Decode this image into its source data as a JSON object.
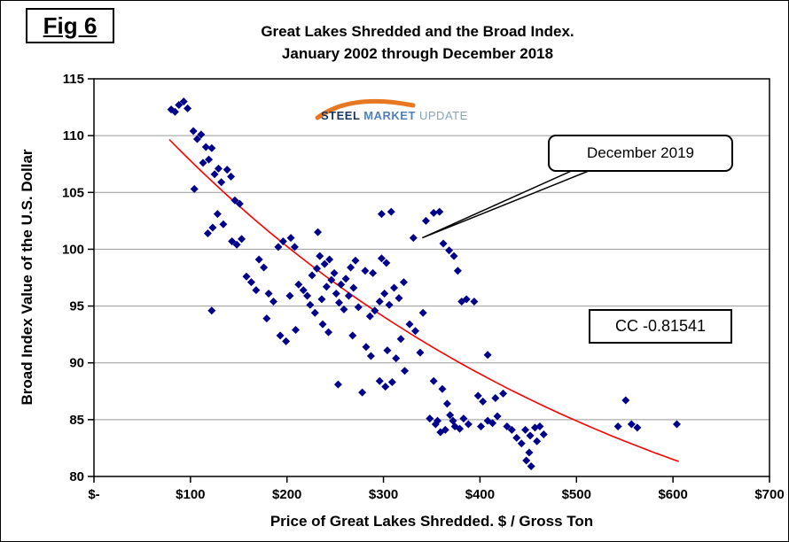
{
  "figure": {
    "label": "Fig 6"
  },
  "logo": {
    "steel": "STEEL ",
    "market": "MARKET ",
    "update": "UPDATE"
  },
  "annotations": {
    "callout": {
      "label": "December 2019",
      "target_x": 331,
      "target_y": 101
    },
    "cc_box": {
      "label": "CC -0.81541"
    }
  },
  "chart_data": {
    "type": "scatter",
    "title": "Great Lakes Shredded and the Broad Index.",
    "subtitle": "January 2002 through December 2018",
    "xlabel": "Price of Great Lakes Shredded. $ / Gross Ton",
    "ylabel": "Broad Index Value of the U.S. Dollar",
    "xlim": [
      0,
      700
    ],
    "ylim": [
      80,
      115
    ],
    "grid": "horizontal",
    "grid_color": "#999999",
    "x_ticks": [
      {
        "value": 0,
        "label": "$-"
      },
      {
        "value": 100,
        "label": "$100"
      },
      {
        "value": 200,
        "label": "$200"
      },
      {
        "value": 300,
        "label": "$300"
      },
      {
        "value": 400,
        "label": "$400"
      },
      {
        "value": 500,
        "label": "$500"
      },
      {
        "value": 600,
        "label": "$600"
      },
      {
        "value": 700,
        "label": "$700"
      }
    ],
    "y_ticks": [
      {
        "value": 80,
        "label": "80"
      },
      {
        "value": 85,
        "label": "85"
      },
      {
        "value": 90,
        "label": "90"
      },
      {
        "value": 95,
        "label": "95"
      },
      {
        "value": 100,
        "label": "100"
      },
      {
        "value": 105,
        "label": "105"
      },
      {
        "value": 110,
        "label": "110"
      },
      {
        "value": 115,
        "label": "115"
      }
    ],
    "marker": {
      "shape": "diamond",
      "color": "#00008B",
      "size": 9
    },
    "trend": {
      "type": "exponential",
      "color": "#FF0000",
      "c": 66.2,
      "a": 50.8,
      "tau": 500,
      "x_start": 78,
      "x_end": 612
    },
    "points": [
      [
        80,
        112.3
      ],
      [
        84,
        112.1
      ],
      [
        88,
        112.7
      ],
      [
        93,
        113.0
      ],
      [
        97,
        112.4
      ],
      [
        103,
        110.4
      ],
      [
        107,
        109.7
      ],
      [
        104,
        105.3
      ],
      [
        111,
        110.1
      ],
      [
        116,
        109.0
      ],
      [
        113,
        107.6
      ],
      [
        119,
        107.9
      ],
      [
        122,
        108.9
      ],
      [
        125,
        106.6
      ],
      [
        129,
        107.1
      ],
      [
        132,
        105.9
      ],
      [
        138,
        107.0
      ],
      [
        142,
        106.4
      ],
      [
        146,
        104.3
      ],
      [
        151,
        104.0
      ],
      [
        118,
        101.4
      ],
      [
        123,
        101.9
      ],
      [
        128,
        103.1
      ],
      [
        134,
        102.2
      ],
      [
        122,
        94.6
      ],
      [
        143,
        100.7
      ],
      [
        148,
        100.4
      ],
      [
        153,
        100.9
      ],
      [
        158,
        97.6
      ],
      [
        163,
        97.1
      ],
      [
        168,
        96.4
      ],
      [
        171,
        99.1
      ],
      [
        176,
        98.4
      ],
      [
        181,
        96.1
      ],
      [
        186,
        95.4
      ],
      [
        179,
        93.9
      ],
      [
        191,
        100.2
      ],
      [
        196,
        100.7
      ],
      [
        193,
        92.4
      ],
      [
        199,
        91.9
      ],
      [
        204,
        101.0
      ],
      [
        208,
        100.2
      ],
      [
        203,
        95.9
      ],
      [
        212,
        96.9
      ],
      [
        217,
        96.4
      ],
      [
        209,
        92.9
      ],
      [
        221,
        95.9
      ],
      [
        226,
        97.7
      ],
      [
        231,
        98.3
      ],
      [
        224,
        95.1
      ],
      [
        229,
        94.4
      ],
      [
        236,
        95.6
      ],
      [
        234,
        99.4
      ],
      [
        239,
        98.7
      ],
      [
        244,
        99.1
      ],
      [
        249,
        97.9
      ],
      [
        241,
        96.7
      ],
      [
        246,
        97.3
      ],
      [
        251,
        96.1
      ],
      [
        256,
        96.9
      ],
      [
        261,
        97.4
      ],
      [
        232,
        101.5
      ],
      [
        237,
        93.4
      ],
      [
        243,
        92.7
      ],
      [
        254,
        95.3
      ],
      [
        259,
        94.7
      ],
      [
        264,
        95.9
      ],
      [
        269,
        96.6
      ],
      [
        274,
        94.9
      ],
      [
        266,
        98.4
      ],
      [
        271,
        99.0
      ],
      [
        281,
        98.1
      ],
      [
        286,
        94.1
      ],
      [
        291,
        94.6
      ],
      [
        296,
        95.4
      ],
      [
        301,
        96.1
      ],
      [
        306,
        95.1
      ],
      [
        289,
        97.9
      ],
      [
        311,
        96.6
      ],
      [
        316,
        95.7
      ],
      [
        321,
        97.1
      ],
      [
        298,
        99.2
      ],
      [
        303,
        98.8
      ],
      [
        253,
        88.1
      ],
      [
        278,
        87.4
      ],
      [
        268,
        92.4
      ],
      [
        282,
        91.4
      ],
      [
        287,
        90.6
      ],
      [
        296,
        88.4
      ],
      [
        302,
        87.9
      ],
      [
        309,
        88.3
      ],
      [
        304,
        91.1
      ],
      [
        313,
        90.4
      ],
      [
        318,
        92.1
      ],
      [
        322,
        89.3
      ],
      [
        327,
        93.4
      ],
      [
        333,
        92.8
      ],
      [
        338,
        90.9
      ],
      [
        341,
        94.4
      ],
      [
        298,
        103.1
      ],
      [
        308,
        103.3
      ],
      [
        331,
        101.0
      ],
      [
        344,
        102.5
      ],
      [
        352,
        103.2
      ],
      [
        358,
        103.3
      ],
      [
        362,
        100.5
      ],
      [
        368,
        99.9
      ],
      [
        352,
        88.4
      ],
      [
        361,
        87.7
      ],
      [
        366,
        86.4
      ],
      [
        348,
        85.1
      ],
      [
        354,
        84.6
      ],
      [
        359,
        83.9
      ],
      [
        356,
        84.9
      ],
      [
        364,
        84.1
      ],
      [
        369,
        85.4
      ],
      [
        372,
        84.9
      ],
      [
        374,
        84.4
      ],
      [
        379,
        84.2
      ],
      [
        383,
        85.1
      ],
      [
        388,
        84.6
      ],
      [
        373,
        99.4
      ],
      [
        377,
        98.1
      ],
      [
        381,
        95.4
      ],
      [
        386,
        95.6
      ],
      [
        394,
        95.4
      ],
      [
        398,
        87.1
      ],
      [
        403,
        86.6
      ],
      [
        401,
        84.4
      ],
      [
        408,
        84.9
      ],
      [
        413,
        84.7
      ],
      [
        418,
        85.3
      ],
      [
        416,
        86.9
      ],
      [
        424,
        87.3
      ],
      [
        428,
        84.4
      ],
      [
        433,
        84.1
      ],
      [
        438,
        83.4
      ],
      [
        443,
        82.9
      ],
      [
        447,
        84.1
      ],
      [
        452,
        83.6
      ],
      [
        448,
        81.4
      ],
      [
        453,
        80.9
      ],
      [
        457,
        84.3
      ],
      [
        451,
        82.1
      ],
      [
        459,
        83.1
      ],
      [
        462,
        84.4
      ],
      [
        466,
        83.7
      ],
      [
        408,
        90.7
      ],
      [
        543,
        84.4
      ],
      [
        551,
        86.7
      ],
      [
        557,
        84.6
      ],
      [
        563,
        84.3
      ],
      [
        604,
        84.6
      ]
    ]
  }
}
